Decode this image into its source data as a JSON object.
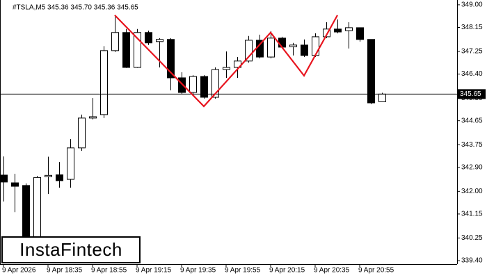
{
  "chart_data": {
    "type": "candlestick",
    "title": "#TSLA,M5  345.36 345.70 345.36 345.65",
    "categories": [
      "9 Apr 2026",
      null,
      null,
      null,
      "9 Apr 18:35",
      null,
      null,
      null,
      "9 Apr 18:55",
      null,
      null,
      null,
      "9 Apr 19:15",
      null,
      null,
      null,
      "9 Apr 19:35",
      null,
      null,
      null,
      "9 Apr 19:55",
      null,
      null,
      null,
      "9 Apr 20:15",
      null,
      null,
      null,
      "9 Apr 20:35",
      null,
      null,
      null,
      "9 Apr 20:55",
      null,
      null
    ],
    "open": [
      342.61,
      342.32,
      342.22,
      339.6,
      342.55,
      342.62,
      342.45,
      343.63,
      344.75,
      344.88,
      347.28,
      347.96,
      346.65,
      347.96,
      347.62,
      347.7,
      346.26,
      345.71,
      346.31,
      345.53,
      346.57,
      346.65,
      346.89,
      347.67,
      347.04,
      347.75,
      347.43,
      347.49,
      347.1,
      347.8,
      348.09,
      348.03,
      348.14,
      347.7,
      345.36
    ],
    "high": [
      343.31,
      342.66,
      342.3,
      342.58,
      343.3,
      343.1,
      343.96,
      344.88,
      345.5,
      347.45,
      348.55,
      348.09,
      348.09,
      348.03,
      347.75,
      347.75,
      346.47,
      346.36,
      346.36,
      346.65,
      347.25,
      347.04,
      347.83,
      347.88,
      348.01,
      347.8,
      347.57,
      347.7,
      347.93,
      348.35,
      348.45,
      348.35,
      348.14,
      347.7,
      345.7
    ],
    "low": [
      341.62,
      341.22,
      339.3,
      339.4,
      341.9,
      342.14,
      342.14,
      343.52,
      344.7,
      344.75,
      347.23,
      346.63,
      346.63,
      347.49,
      346.65,
      345.79,
      345.66,
      345.61,
      345.48,
      345.48,
      346.26,
      346.26,
      346.83,
      346.99,
      346.99,
      347.36,
      347.1,
      347.04,
      347.04,
      347.75,
      347.93,
      347.36,
      347.62,
      345.27,
      345.36
    ],
    "close": [
      342.35,
      342.19,
      339.45,
      342.52,
      342.6,
      342.4,
      343.63,
      344.75,
      344.8,
      347.28,
      347.96,
      346.65,
      347.96,
      347.57,
      347.7,
      346.26,
      345.71,
      346.31,
      345.53,
      346.57,
      346.65,
      346.89,
      347.67,
      347.04,
      347.75,
      347.41,
      347.49,
      347.1,
      347.8,
      348.09,
      347.98,
      348.14,
      347.7,
      345.32,
      345.65
    ],
    "up_color": "#ffffff",
    "down_color": "#000000",
    "ylim": [
      339.27,
      349.18
    ],
    "yticks": [
      {
        "value": 349,
        "label": "349.00"
      },
      348.15,
      347.25,
      {
        "value": 346.4,
        "label": "346.40"
      },
      {
        "value": 345.5,
        "label": "345.50"
      },
      344.65,
      343.75,
      {
        "value": 342.9,
        "label": "342.90"
      },
      {
        "value": 342,
        "label": "342.00"
      },
      341.15,
      340.25,
      {
        "value": 339.4,
        "label": "339.40"
      }
    ],
    "last_price": 345.65,
    "pattern": {
      "color": "#e8141e",
      "x": [
        10,
        18,
        24,
        27,
        30
      ],
      "values": [
        348.61,
        345.19,
        347.96,
        346.34,
        348.61
      ]
    },
    "logo": "InstaFintech"
  }
}
